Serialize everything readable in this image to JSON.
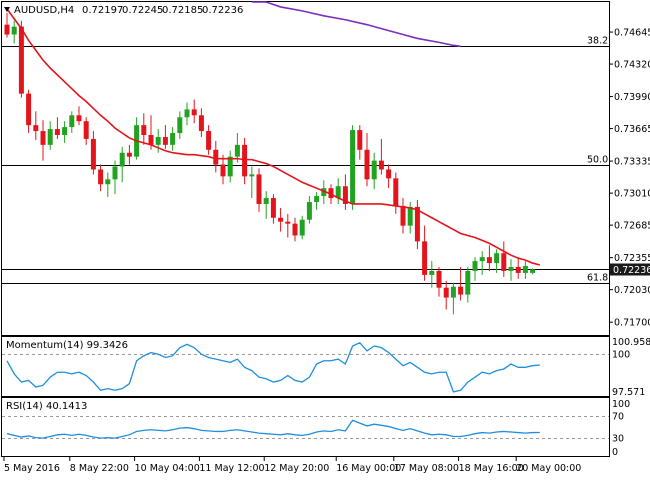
{
  "chart_data": {
    "type": "candlestick",
    "symbol_label": "AUDUSD,H4",
    "ohlc_header": [
      "0.72197",
      "0.72245",
      "0.72185",
      "0.72236"
    ],
    "dropdown_icon": "triangle-down-icon",
    "last_price_label": "0.72236",
    "colors": {
      "bull": "#21a321",
      "bear": "#e3141b",
      "sma20": "#e3141b",
      "sma200": "#7b2fbd",
      "grid": "#000000",
      "indicator": "#1f8fdc",
      "pill": "#1a1a1a"
    },
    "price_axis": {
      "ticks": [
        "0.74645",
        "0.74320",
        "0.73990",
        "0.73665",
        "0.73335",
        "0.73010",
        "0.72685",
        "0.72355",
        "0.72030",
        "0.71700"
      ],
      "range": [
        0.7158,
        0.7495
      ]
    },
    "date_ticks": [
      "5 May 2016",
      "8 May 22:00",
      "10 May 04:00",
      "11 May 12:00",
      "12 May 20:00",
      "16 May 00:00",
      "17 May 08:00",
      "18 May 16:00",
      "20 May 00:00"
    ],
    "fib_levels": [
      {
        "label": "38.2",
        "price": 0.745
      },
      {
        "label": "50.0",
        "price": 0.733
      },
      {
        "label": "61.8",
        "price": 0.721
      }
    ],
    "current_price": 0.72236,
    "candles": [
      {
        "o": 0.7472,
        "h": 0.7484,
        "l": 0.7459,
        "c": 0.7462
      },
      {
        "o": 0.7462,
        "h": 0.7476,
        "l": 0.7453,
        "c": 0.747
      },
      {
        "o": 0.747,
        "h": 0.7476,
        "l": 0.7398,
        "c": 0.7402
      },
      {
        "o": 0.7402,
        "h": 0.7406,
        "l": 0.7362,
        "c": 0.737
      },
      {
        "o": 0.737,
        "h": 0.7384,
        "l": 0.7355,
        "c": 0.7364
      },
      {
        "o": 0.7364,
        "h": 0.7375,
        "l": 0.7334,
        "c": 0.735
      },
      {
        "o": 0.735,
        "h": 0.7374,
        "l": 0.7345,
        "c": 0.7366
      },
      {
        "o": 0.7366,
        "h": 0.7378,
        "l": 0.7356,
        "c": 0.736
      },
      {
        "o": 0.736,
        "h": 0.7374,
        "l": 0.7352,
        "c": 0.7368
      },
      {
        "o": 0.7368,
        "h": 0.7384,
        "l": 0.7362,
        "c": 0.738
      },
      {
        "o": 0.738,
        "h": 0.7389,
        "l": 0.737,
        "c": 0.7374
      },
      {
        "o": 0.7374,
        "h": 0.7378,
        "l": 0.735,
        "c": 0.7356
      },
      {
        "o": 0.7356,
        "h": 0.7364,
        "l": 0.732,
        "c": 0.7325
      },
      {
        "o": 0.7325,
        "h": 0.733,
        "l": 0.7303,
        "c": 0.731
      },
      {
        "o": 0.731,
        "h": 0.7322,
        "l": 0.7297,
        "c": 0.7315
      },
      {
        "o": 0.7315,
        "h": 0.7334,
        "l": 0.73,
        "c": 0.7328
      },
      {
        "o": 0.7328,
        "h": 0.7348,
        "l": 0.7312,
        "c": 0.7342
      },
      {
        "o": 0.7342,
        "h": 0.735,
        "l": 0.733,
        "c": 0.7338
      },
      {
        "o": 0.7338,
        "h": 0.7378,
        "l": 0.7335,
        "c": 0.737
      },
      {
        "o": 0.737,
        "h": 0.7382,
        "l": 0.735,
        "c": 0.736
      },
      {
        "o": 0.736,
        "h": 0.738,
        "l": 0.7345,
        "c": 0.735
      },
      {
        "o": 0.735,
        "h": 0.7366,
        "l": 0.7342,
        "c": 0.7358
      },
      {
        "o": 0.7358,
        "h": 0.737,
        "l": 0.7346,
        "c": 0.735
      },
      {
        "o": 0.735,
        "h": 0.7368,
        "l": 0.7344,
        "c": 0.7362
      },
      {
        "o": 0.7362,
        "h": 0.7384,
        "l": 0.7356,
        "c": 0.7378
      },
      {
        "o": 0.7378,
        "h": 0.7393,
        "l": 0.737,
        "c": 0.7386
      },
      {
        "o": 0.7386,
        "h": 0.7396,
        "l": 0.7372,
        "c": 0.738
      },
      {
        "o": 0.738,
        "h": 0.7387,
        "l": 0.7358,
        "c": 0.7364
      },
      {
        "o": 0.7364,
        "h": 0.737,
        "l": 0.734,
        "c": 0.7345
      },
      {
        "o": 0.7345,
        "h": 0.7354,
        "l": 0.7322,
        "c": 0.733
      },
      {
        "o": 0.733,
        "h": 0.734,
        "l": 0.731,
        "c": 0.7318
      },
      {
        "o": 0.7318,
        "h": 0.7344,
        "l": 0.7312,
        "c": 0.7338
      },
      {
        "o": 0.7338,
        "h": 0.7362,
        "l": 0.7332,
        "c": 0.735
      },
      {
        "o": 0.735,
        "h": 0.7357,
        "l": 0.731,
        "c": 0.7318
      },
      {
        "o": 0.7318,
        "h": 0.7328,
        "l": 0.7296,
        "c": 0.732
      },
      {
        "o": 0.732,
        "h": 0.7326,
        "l": 0.7282,
        "c": 0.729
      },
      {
        "o": 0.729,
        "h": 0.7303,
        "l": 0.7275,
        "c": 0.7296
      },
      {
        "o": 0.7296,
        "h": 0.73,
        "l": 0.727,
        "c": 0.7276
      },
      {
        "o": 0.7276,
        "h": 0.7286,
        "l": 0.7262,
        "c": 0.7272
      },
      {
        "o": 0.7272,
        "h": 0.728,
        "l": 0.7256,
        "c": 0.727
      },
      {
        "o": 0.727,
        "h": 0.7276,
        "l": 0.7252,
        "c": 0.7258
      },
      {
        "o": 0.7258,
        "h": 0.7278,
        "l": 0.7254,
        "c": 0.7274
      },
      {
        "o": 0.7274,
        "h": 0.7298,
        "l": 0.727,
        "c": 0.7292
      },
      {
        "o": 0.7292,
        "h": 0.7302,
        "l": 0.7284,
        "c": 0.7298
      },
      {
        "o": 0.7298,
        "h": 0.7314,
        "l": 0.729,
        "c": 0.7306
      },
      {
        "o": 0.7306,
        "h": 0.731,
        "l": 0.729,
        "c": 0.7296
      },
      {
        "o": 0.7296,
        "h": 0.7316,
        "l": 0.729,
        "c": 0.7308
      },
      {
        "o": 0.7308,
        "h": 0.732,
        "l": 0.7284,
        "c": 0.729
      },
      {
        "o": 0.729,
        "h": 0.737,
        "l": 0.7284,
        "c": 0.7365
      },
      {
        "o": 0.7365,
        "h": 0.737,
        "l": 0.7335,
        "c": 0.7345
      },
      {
        "o": 0.7345,
        "h": 0.7362,
        "l": 0.7308,
        "c": 0.7315
      },
      {
        "o": 0.7315,
        "h": 0.7342,
        "l": 0.7305,
        "c": 0.7334
      },
      {
        "o": 0.7334,
        "h": 0.7356,
        "l": 0.732,
        "c": 0.7325
      },
      {
        "o": 0.7325,
        "h": 0.733,
        "l": 0.7306,
        "c": 0.7316
      },
      {
        "o": 0.7316,
        "h": 0.7322,
        "l": 0.728,
        "c": 0.7288
      },
      {
        "o": 0.7288,
        "h": 0.7296,
        "l": 0.726,
        "c": 0.7268
      },
      {
        "o": 0.7268,
        "h": 0.7292,
        "l": 0.726,
        "c": 0.7287
      },
      {
        "o": 0.7287,
        "h": 0.7294,
        "l": 0.7244,
        "c": 0.7252
      },
      {
        "o": 0.7252,
        "h": 0.7268,
        "l": 0.7212,
        "c": 0.7218
      },
      {
        "o": 0.7218,
        "h": 0.7232,
        "l": 0.7205,
        "c": 0.7222
      },
      {
        "o": 0.7222,
        "h": 0.7226,
        "l": 0.7196,
        "c": 0.7205
      },
      {
        "o": 0.7205,
        "h": 0.7212,
        "l": 0.7183,
        "c": 0.7195
      },
      {
        "o": 0.7195,
        "h": 0.721,
        "l": 0.7178,
        "c": 0.7206
      },
      {
        "o": 0.7206,
        "h": 0.7226,
        "l": 0.7192,
        "c": 0.7198
      },
      {
        "o": 0.7198,
        "h": 0.7226,
        "l": 0.719,
        "c": 0.7222
      },
      {
        "o": 0.7222,
        "h": 0.7236,
        "l": 0.7212,
        "c": 0.7232
      },
      {
        "o": 0.7232,
        "h": 0.7242,
        "l": 0.7218,
        "c": 0.7236
      },
      {
        "o": 0.7236,
        "h": 0.7248,
        "l": 0.7222,
        "c": 0.723
      },
      {
        "o": 0.723,
        "h": 0.7244,
        "l": 0.722,
        "c": 0.724
      },
      {
        "o": 0.724,
        "h": 0.7252,
        "l": 0.7216,
        "c": 0.7222
      },
      {
        "o": 0.7222,
        "h": 0.7234,
        "l": 0.7212,
        "c": 0.7226
      },
      {
        "o": 0.7226,
        "h": 0.7236,
        "l": 0.7214,
        "c": 0.722
      },
      {
        "o": 0.722,
        "h": 0.7232,
        "l": 0.7214,
        "c": 0.7227
      },
      {
        "o": 0.722,
        "h": 0.72245,
        "l": 0.72185,
        "c": 0.72236
      }
    ],
    "sma_fast": {
      "name": "sma20",
      "values": [
        0.7488,
        0.7478,
        0.7468,
        0.7456,
        0.7446,
        0.7436,
        0.7428,
        0.7421,
        0.7414,
        0.7407,
        0.74,
        0.7394,
        0.7387,
        0.738,
        0.7374,
        0.7367,
        0.7362,
        0.7357,
        0.7354,
        0.7352,
        0.735,
        0.7347,
        0.7344,
        0.7342,
        0.7341,
        0.734,
        0.734,
        0.7339,
        0.7338,
        0.7336,
        0.7336,
        0.7336,
        0.7336,
        0.7335,
        0.7335,
        0.7333,
        0.7331,
        0.7328,
        0.7324,
        0.732,
        0.7316,
        0.7312,
        0.7309,
        0.7306,
        0.7303,
        0.73,
        0.7296,
        0.7293,
        0.729,
        0.729,
        0.729,
        0.729,
        0.729,
        0.7289,
        0.7288,
        0.7287,
        0.7286,
        0.7284,
        0.728,
        0.7276,
        0.7272,
        0.7268,
        0.7264,
        0.726,
        0.7258,
        0.7256,
        0.7253,
        0.725,
        0.7246,
        0.7242,
        0.7238,
        0.7235,
        0.7233,
        0.723,
        0.7228
      ]
    },
    "sma_slow": {
      "name": "sma200",
      "points": [
        [
          34,
          0.75
        ],
        [
          36,
          0.7495
        ],
        [
          38,
          0.749
        ],
        [
          41,
          0.7486
        ],
        [
          44,
          0.7481
        ],
        [
          47,
          0.7477
        ],
        [
          50,
          0.7472
        ],
        [
          52,
          0.7468
        ],
        [
          55,
          0.7462
        ],
        [
          57,
          0.7458
        ],
        [
          60,
          0.7454
        ],
        [
          62,
          0.7451
        ],
        [
          63,
          0.745
        ]
      ]
    },
    "momentum": {
      "label": "Momentum(14) 99.3426",
      "ticks": [
        "100.9587",
        "100",
        "97.571"
      ],
      "range": [
        97.45,
        101.05
      ],
      "values": [
        99.6,
        98.8,
        98.3,
        98.4,
        98.0,
        98.1,
        98.6,
        98.9,
        98.9,
        98.8,
        98.9,
        98.7,
        98.3,
        97.8,
        97.9,
        97.8,
        97.9,
        98.2,
        99.6,
        99.9,
        100.1,
        100.0,
        99.8,
        99.9,
        100.4,
        100.6,
        100.4,
        100.0,
        99.8,
        99.7,
        99.6,
        99.5,
        99.7,
        99.2,
        99.0,
        98.6,
        98.5,
        98.3,
        98.4,
        98.7,
        98.4,
        98.3,
        98.6,
        99.4,
        99.6,
        99.6,
        99.7,
        99.4,
        100.5,
        100.7,
        100.2,
        100.5,
        100.4,
        100.1,
        99.7,
        99.3,
        99.5,
        99.2,
        98.9,
        98.8,
        98.9,
        98.9,
        97.7,
        97.8,
        98.3,
        98.6,
        98.9,
        98.8,
        99.0,
        99.1,
        99.4,
        99.2,
        99.2,
        99.3,
        99.3426
      ]
    },
    "rsi": {
      "label": "RSI(14) 40.1413",
      "ticks": [
        "100",
        "70",
        "30",
        "0"
      ],
      "range": [
        -2,
        102
      ],
      "values": [
        38,
        35,
        32,
        34,
        31,
        30,
        33,
        36,
        37,
        35,
        37,
        35,
        32,
        30,
        31,
        30,
        33,
        36,
        42,
        44,
        45,
        44,
        43,
        45,
        48,
        49,
        47,
        44,
        43,
        42,
        42,
        44,
        45,
        43,
        41,
        39,
        38,
        37,
        36,
        38,
        36,
        35,
        37,
        41,
        43,
        42,
        45,
        43,
        62,
        57,
        52,
        55,
        53,
        51,
        47,
        44,
        47,
        43,
        39,
        36,
        37,
        36,
        33,
        33,
        35,
        38,
        40,
        39,
        41,
        42,
        41,
        40,
        39,
        40,
        40.1413
      ]
    }
  }
}
